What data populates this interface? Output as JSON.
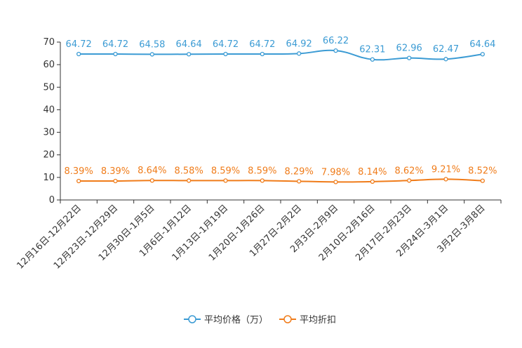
{
  "chart_data": {
    "type": "line",
    "categories": [
      "12月16日-12月22日",
      "12月23日-12月29日",
      "12月30日-1月5日",
      "1月6日-1月12日",
      "1月13日-1月19日",
      "1月20日-1月26日",
      "1月27日-2月2日",
      "2月3日-2月9日",
      "2月10日-2月16日",
      "2月17日-2月23日",
      "2月24日-3月1日",
      "3月2日-3月8日"
    ],
    "series": [
      {
        "name": "平均价格（万）",
        "color": "#3b9bd4",
        "values": [
          64.72,
          64.72,
          64.58,
          64.64,
          64.72,
          64.72,
          64.92,
          66.22,
          62.31,
          62.96,
          62.47,
          64.64
        ],
        "labels": [
          "64.72",
          "64.72",
          "64.58",
          "64.64",
          "64.72",
          "64.72",
          "64.92",
          "66.22",
          "62.31",
          "62.96",
          "62.47",
          "64.64"
        ]
      },
      {
        "name": "平均折扣",
        "color": "#f07c1a",
        "values": [
          8.39,
          8.39,
          8.64,
          8.58,
          8.59,
          8.59,
          8.29,
          7.98,
          8.14,
          8.62,
          9.21,
          8.52
        ],
        "labels": [
          "8.39%",
          "8.39%",
          "8.64%",
          "8.58%",
          "8.59%",
          "8.59%",
          "8.29%",
          "7.98%",
          "8.14%",
          "8.62%",
          "9.21%",
          "8.52%"
        ]
      }
    ],
    "y_ticks": [
      "0",
      "10",
      "20",
      "30",
      "40",
      "50",
      "60",
      "70"
    ],
    "ylim": [
      0,
      70
    ],
    "title": "",
    "xlabel": "",
    "ylabel": "",
    "legend_position": "bottom-center"
  }
}
